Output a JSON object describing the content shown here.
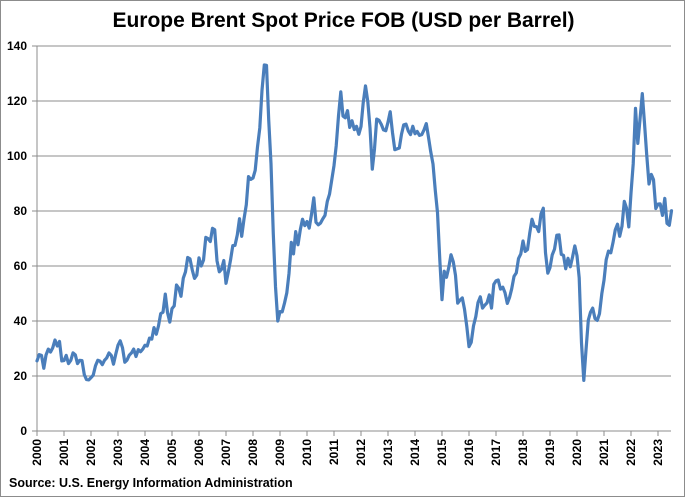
{
  "chart_data": {
    "type": "line",
    "title": "Europe Brent Spot Price FOB (USD per Barrel)",
    "source": "Source: U.S. Energy Information Administration",
    "xlabel": "",
    "ylabel": "",
    "ylim": [
      0,
      140
    ],
    "yticks": [
      "0",
      "20",
      "40",
      "60",
      "80",
      "100",
      "120",
      "140"
    ],
    "xticks": [
      "2000",
      "2001",
      "2002",
      "2003",
      "2004",
      "2005",
      "2006",
      "2007",
      "2008",
      "2009",
      "2010",
      "2011",
      "2012",
      "2013",
      "2014",
      "2015",
      "2016",
      "2017",
      "2018",
      "2019",
      "2020",
      "2021",
      "2022",
      "2023"
    ],
    "grid": "horizontal",
    "legend": "none",
    "color": "#4a7ebb",
    "series": [
      {
        "frequency": "monthly",
        "values_by_year": {
          "2000": [
            25.5,
            27.8,
            27.5,
            22.8,
            27.6,
            29.8,
            28.7,
            30.2,
            33.1,
            30.9,
            32.6,
            25.5
          ],
          "2001": [
            25.6,
            27.5,
            24.5,
            25.7,
            28.4,
            27.7,
            24.5,
            25.7,
            25.6,
            20.5,
            18.7,
            18.6
          ],
          "2002": [
            19.4,
            20.3,
            23.7,
            25.7,
            25.4,
            24.1,
            25.7,
            26.6,
            28.4,
            27.5,
            24.3,
            28.0
          ],
          "2003": [
            31.2,
            32.8,
            30.3,
            25.0,
            25.8,
            27.6,
            28.4,
            29.8,
            27.1,
            29.6,
            28.8,
            29.8
          ],
          "2004": [
            31.2,
            30.9,
            33.8,
            33.4,
            37.6,
            35.2,
            38.2,
            42.7,
            43.2,
            49.8,
            43.1,
            39.6
          ],
          "2005": [
            44.5,
            45.5,
            53.1,
            51.9,
            49.0,
            55.6,
            57.9,
            63.1,
            62.6,
            58.5,
            55.5,
            56.7
          ],
          "2006": [
            63.0,
            60.0,
            62.1,
            70.4,
            70.0,
            68.9,
            73.7,
            73.2,
            61.9,
            57.9,
            58.8,
            62.0
          ],
          "2007": [
            53.7,
            57.6,
            62.1,
            67.4,
            67.5,
            71.3,
            77.2,
            70.8,
            77.1,
            82.3,
            92.5,
            91.5
          ],
          "2008": [
            92.0,
            94.8,
            103.3,
            110.2,
            123.9,
            133.1,
            133.0,
            113.2,
            97.2,
            71.6,
            52.5,
            40.0
          ],
          "2009": [
            43.4,
            43.3,
            46.5,
            50.2,
            57.3,
            68.6,
            64.4,
            72.5,
            67.7,
            73.2,
            77.0,
            74.7
          ],
          "2010": [
            76.2,
            73.8,
            78.8,
            84.8,
            75.9,
            75.0,
            75.6,
            77.1,
            78.4,
            83.5,
            86.1,
            91.4
          ],
          "2011": [
            96.5,
            103.7,
            114.6,
            123.3,
            114.5,
            113.9,
            116.5,
            110.4,
            112.8,
            109.6,
            110.8,
            107.9
          ],
          "2012": [
            110.7,
            119.3,
            125.5,
            119.8,
            110.3,
            95.2,
            102.6,
            113.4,
            113.0,
            111.5,
            109.5,
            109.2
          ],
          "2013": [
            112.3,
            116.1,
            108.5,
            102.3,
            102.6,
            102.9,
            107.9,
            111.3,
            111.6,
            109.1,
            107.8,
            110.8
          ],
          "2014": [
            108.1,
            108.9,
            107.5,
            107.8,
            109.5,
            111.8,
            106.8,
            101.6,
            97.1,
            87.4,
            79.4,
            62.3
          ],
          "2015": [
            47.8,
            58.1,
            55.9,
            59.5,
            64.1,
            61.5,
            56.6,
            46.5,
            47.6,
            48.4,
            44.3,
            38.0
          ],
          "2016": [
            30.7,
            32.2,
            38.2,
            41.6,
            46.7,
            48.8,
            44.7,
            45.7,
            46.6,
            49.5,
            44.7,
            53.3
          ],
          "2017": [
            54.6,
            54.9,
            51.6,
            52.3,
            50.3,
            46.4,
            48.5,
            51.7,
            56.2,
            57.5,
            62.7,
            64.4
          ],
          "2018": [
            69.1,
            65.3,
            66.0,
            72.1,
            77.0,
            74.4,
            74.3,
            72.5,
            78.9,
            81.0,
            64.8,
            57.4
          ],
          "2019": [
            59.4,
            64.0,
            66.1,
            71.2,
            71.3,
            64.2,
            63.9,
            59.0,
            62.8,
            59.7,
            63.2,
            67.3
          ],
          "2020": [
            63.7,
            55.7,
            32.0,
            18.4,
            29.4,
            40.3,
            43.2,
            44.7,
            40.9,
            40.2,
            42.7,
            49.9
          ],
          "2021": [
            54.8,
            62.3,
            65.4,
            64.8,
            68.5,
            73.2,
            75.2,
            70.8,
            74.5,
            83.5,
            81.1,
            74.2
          ],
          "2022": [
            86.5,
            97.1,
            117.3,
            104.6,
            113.3,
            122.7,
            111.9,
            100.5,
            89.8,
            93.3,
            91.4,
            80.9
          ],
          "2023": [
            82.5,
            82.6,
            78.4,
            84.6,
            75.5,
            74.8,
            80.1
          ]
        }
      }
    ]
  }
}
